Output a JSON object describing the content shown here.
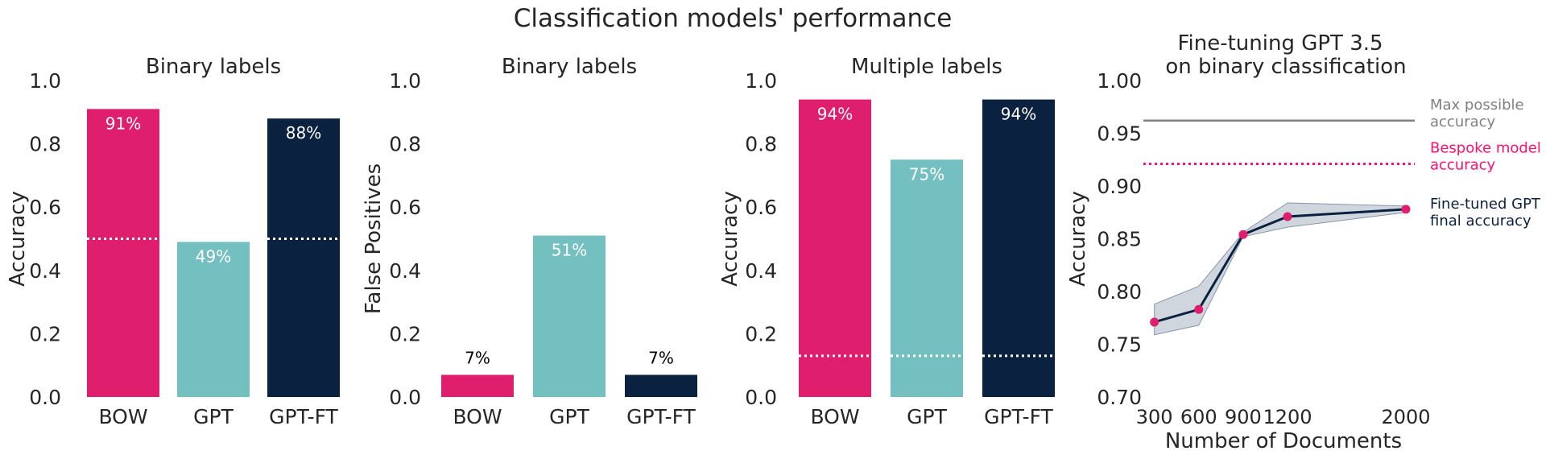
{
  "figure_title": "Classification models' performance",
  "colors": {
    "bow": "#e01e6e",
    "gpt": "#74bfbf",
    "gptft": "#0a2240",
    "max_line": "#808080",
    "bespoke": "#ff0f6e",
    "band": "#a9b4c3",
    "ft_line": "#0a2240",
    "ft_point": "#e01e6e",
    "label_text": "#000000"
  },
  "chart_data": [
    {
      "type": "bar",
      "title": "Binary labels",
      "ylabel": "Accuracy",
      "xlabel": "",
      "ylim": [
        0,
        1
      ],
      "yticks": [
        "0.0",
        "0.2",
        "0.4",
        "0.6",
        "0.8",
        "1.0"
      ],
      "categories": [
        "BOW",
        "GPT",
        "GPT-FT"
      ],
      "values": [
        0.91,
        0.49,
        0.88
      ],
      "bar_labels": [
        "91%",
        "49%",
        "88%"
      ],
      "label_position": "inside",
      "baseline_value": 0.5,
      "baseline_on": [
        "BOW",
        "GPT-FT"
      ]
    },
    {
      "type": "bar",
      "title": "Binary labels",
      "ylabel": "False Positives",
      "xlabel": "",
      "ylim": [
        0,
        1
      ],
      "yticks": [
        "0.0",
        "0.2",
        "0.4",
        "0.6",
        "0.8",
        "1.0"
      ],
      "categories": [
        "BOW",
        "GPT",
        "GPT-FT"
      ],
      "values": [
        0.07,
        0.51,
        0.07
      ],
      "bar_labels": [
        "7%",
        "51%",
        "7%"
      ],
      "label_position": "mixed"
    },
    {
      "type": "bar",
      "title": "Multiple labels",
      "ylabel": "Accuracy",
      "xlabel": "",
      "ylim": [
        0,
        1
      ],
      "yticks": [
        "0.0",
        "0.2",
        "0.4",
        "0.6",
        "0.8",
        "1.0"
      ],
      "categories": [
        "BOW",
        "GPT",
        "GPT-FT"
      ],
      "values": [
        0.94,
        0.75,
        0.94
      ],
      "bar_labels": [
        "94%",
        "75%",
        "94%"
      ],
      "label_position": "inside",
      "baseline_value": 0.13,
      "baseline_on": [
        "BOW",
        "GPT",
        "GPT-FT"
      ]
    },
    {
      "type": "line",
      "title": [
        "Fine-tuning GPT 3.5",
        "on binary classification"
      ],
      "ylabel": "Accuracy",
      "xlabel": "Number of Documents",
      "ylim": [
        0.7,
        1.0
      ],
      "xlim": [
        280,
        2060
      ],
      "yticks": [
        "0.70",
        "0.75",
        "0.80",
        "0.85",
        "0.90",
        "0.95",
        "1.00"
      ],
      "xticks": [
        "300",
        "600",
        "900",
        "1200",
        "2000"
      ],
      "x": [
        300,
        600,
        900,
        1200,
        2000
      ],
      "y": [
        0.771,
        0.783,
        0.854,
        0.871,
        0.878
      ],
      "band_upper": [
        0.788,
        0.805,
        0.856,
        0.884,
        0.881
      ],
      "band_lower": [
        0.759,
        0.768,
        0.852,
        0.861,
        0.875
      ],
      "max_possible": 0.962,
      "bespoke": 0.921,
      "annotations": {
        "max": [
          "Max possible",
          "accuracy"
        ],
        "bespoke": [
          "Bespoke model",
          "accuracy"
        ],
        "finetuned": [
          "Fine-tuned GPT",
          "final accuracy"
        ]
      }
    }
  ]
}
